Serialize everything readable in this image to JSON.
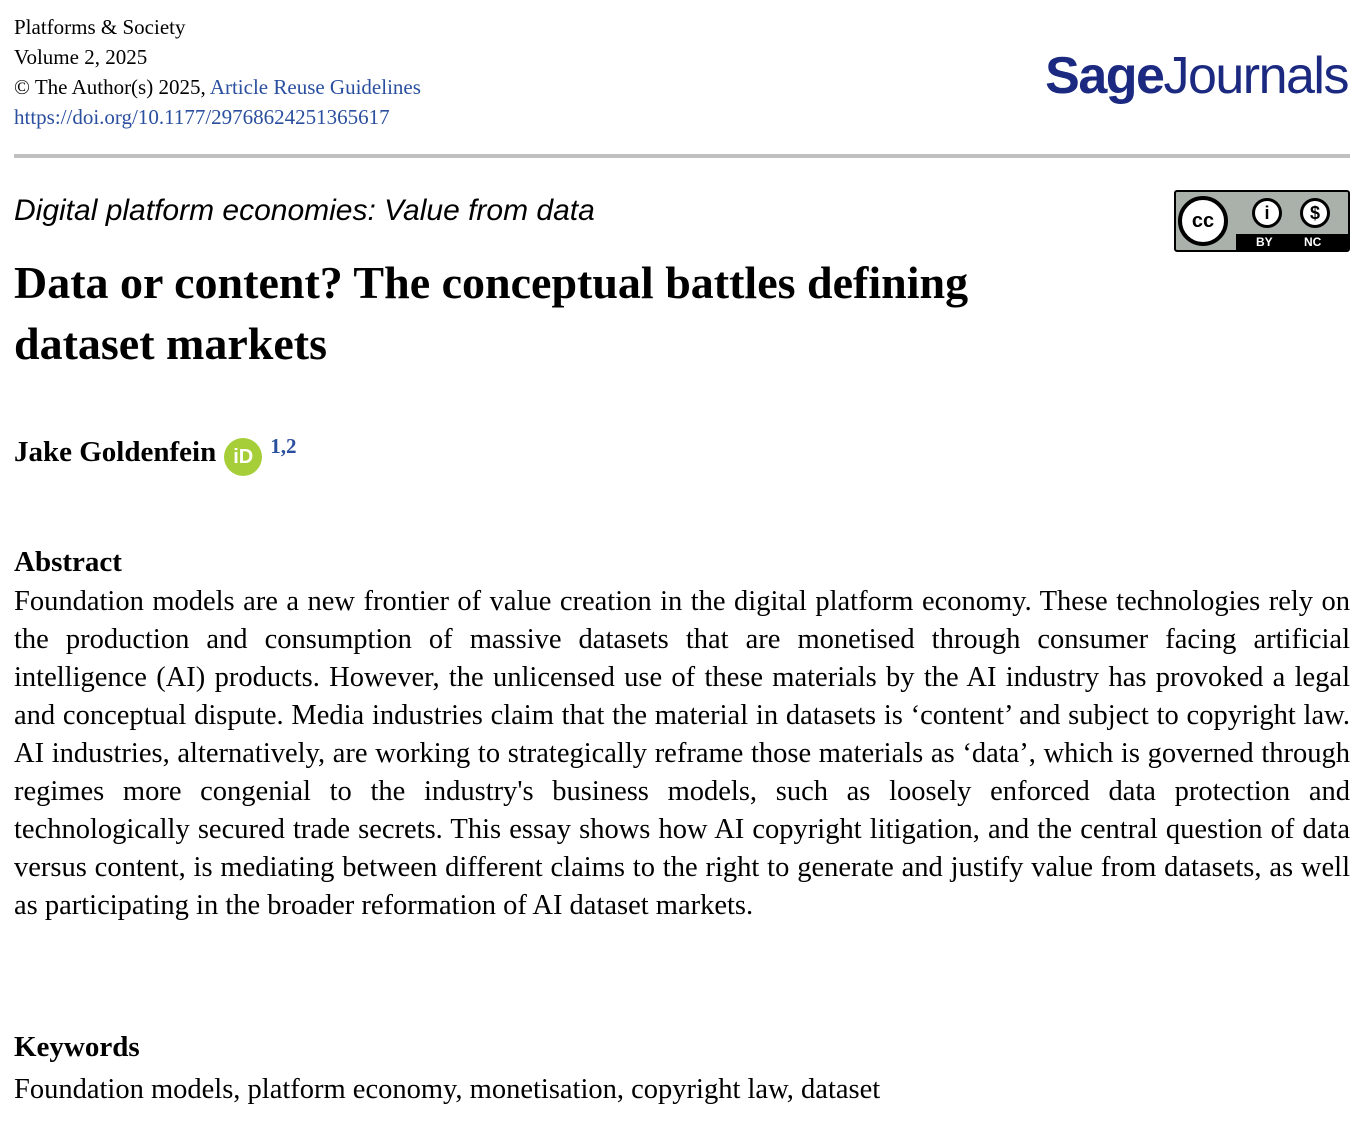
{
  "header": {
    "journal": "Platforms & Society",
    "volume": "Volume 2, 2025",
    "copyright": "© The Author(s) 2025, ",
    "reuse_link": "Article Reuse Guidelines",
    "doi": "https://doi.org/10.1177/29768624251365617",
    "logo_bold": "Sage",
    "logo_regular": "Journals"
  },
  "license": {
    "cc": "cc",
    "by": "BY",
    "nc": "NC"
  },
  "article": {
    "series": "Digital platform economies: Value from data",
    "title": "Data or content? The conceptual battles defining dataset markets",
    "author": "Jake Goldenfein",
    "orcid": "iD",
    "affiliations": "1,2"
  },
  "abstract": {
    "heading": "Abstract",
    "text": "Foundation models are a new frontier of value creation in the digital platform economy. These technologies rely on the production and consumption of massive datasets that are monetised through consumer facing artificial intelligence (AI) products. However, the unlicensed use of these materials by the AI industry has provoked a legal and conceptual dispute. Media industries claim that the material in datasets is ‘content’ and subject to copyright law. AI industries, alternatively, are working to strategically reframe those materials as ‘data’, which is governed through regimes more congenial to the industry's business models, such as loosely enforced data protection and technologically secured trade secrets. This essay shows how AI copyright litigation, and the central question of data versus content, is mediating between different claims to the right to generate and justify value from datasets, as well as participating in the broader reformation of AI dataset markets."
  },
  "keywords": {
    "heading": "Keywords",
    "text": "Foundation models, platform economy, monetisation, copyright law, dataset"
  }
}
